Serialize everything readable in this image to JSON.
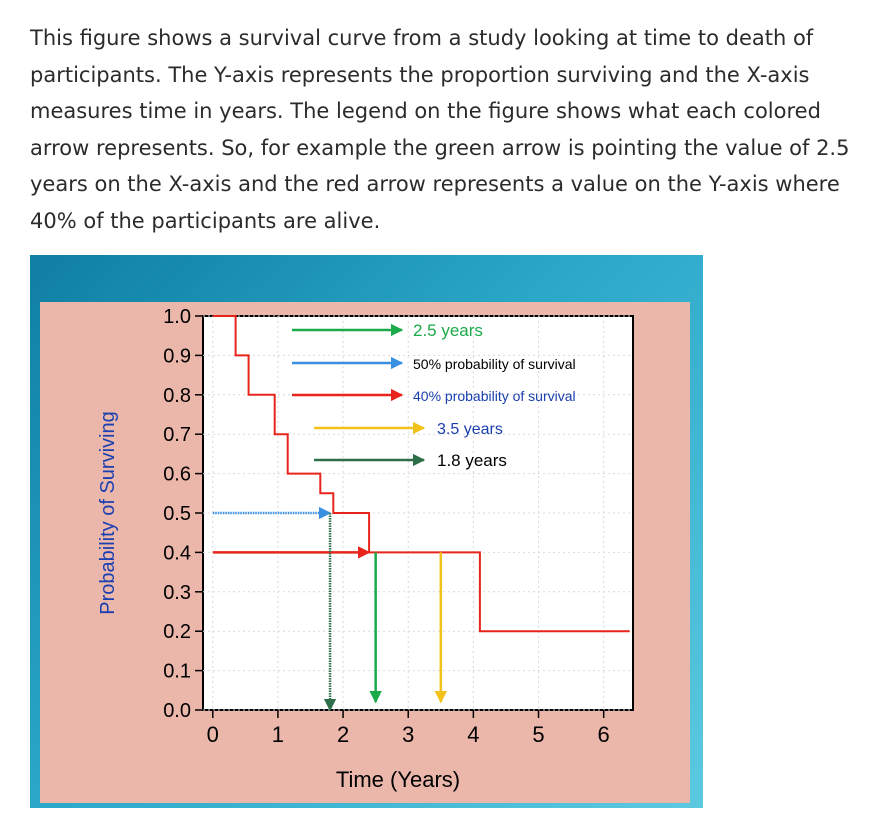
{
  "description": {
    "text": "This figure shows a survival curve from a study looking at time to death of participants.  The Y-axis represents the proportion surviving and the X-axis measures time in years.  The legend on the figure shows what each colored arrow represents.  So, for example the green arrow is pointing the value of 2.5 years on the X-axis and the red arrow represents a value on the Y-axis where 40% of the participants are alive."
  },
  "chart_data": {
    "type": "line",
    "step": true,
    "title": "",
    "xlabel": "Time (Years)",
    "ylabel": "Probability of Surviving",
    "xlim": [
      -0.15,
      6.45
    ],
    "ylim": [
      0,
      1.0
    ],
    "xticks": [
      0,
      1,
      2,
      3,
      4,
      5,
      6
    ],
    "yticks": [
      0.0,
      0.1,
      0.2,
      0.3,
      0.4,
      0.5,
      0.6,
      0.7,
      0.8,
      0.9,
      1.0
    ],
    "ytick_labels": [
      "0.0",
      "0.1",
      "0.2",
      "0.3",
      "0.4",
      "0.5",
      "0.6",
      "0.7",
      "0.8",
      "0.9",
      "1.0"
    ],
    "xtick_labels": [
      "0",
      "1",
      "2",
      "3",
      "4",
      "5",
      "6"
    ],
    "grid": true,
    "curve_color": "#e8241c",
    "series": [
      {
        "x": [
          0,
          0.35,
          0.35,
          0.55,
          0.55,
          0.95,
          0.95,
          1.15,
          1.15,
          1.65,
          1.65,
          1.85,
          1.85,
          2.4,
          2.4,
          4.1,
          4.1,
          6.4
        ],
        "y": [
          1.0,
          1.0,
          0.9,
          0.9,
          0.8,
          0.8,
          0.7,
          0.7,
          0.6,
          0.6,
          0.55,
          0.55,
          0.5,
          0.5,
          0.4,
          0.4,
          0.2,
          0.2
        ]
      }
    ],
    "legend": [
      {
        "label": "2.5 years",
        "color": "#1aaa4a",
        "label_color": "#1aaa4a",
        "style": "solid"
      },
      {
        "label": "50% probability of survival",
        "color": "#3a8fe0",
        "label_color": "#000000",
        "style": "solid"
      },
      {
        "label": "40% probability of survival",
        "color": "#e8241c",
        "label_color": "#1a3fb0",
        "style": "solid"
      },
      {
        "label": "3.5 years",
        "color": "#f3c21a",
        "label_color": "#1a3fb0",
        "style": "solid"
      },
      {
        "label": "1.8 years",
        "color": "#2e6e48",
        "label_color": "#000000",
        "style": "solid"
      }
    ],
    "arrows": [
      {
        "name": "blue-arrow",
        "color": "#3a8fe0",
        "from": [
          0,
          0.5
        ],
        "to": [
          1.8,
          0.5
        ],
        "dotted": true
      },
      {
        "name": "red-arrow",
        "color": "#e8241c",
        "from": [
          0,
          0.4
        ],
        "to": [
          2.4,
          0.4
        ],
        "dotted": false
      },
      {
        "name": "dark-green-arrow",
        "color": "#2e6e48",
        "from": [
          1.8,
          0.5
        ],
        "to": [
          1.8,
          0.0
        ],
        "dotted": true
      },
      {
        "name": "green-arrow",
        "color": "#1aaa4a",
        "from": [
          2.5,
          0.4
        ],
        "to": [
          2.5,
          0.02
        ],
        "dotted": false
      },
      {
        "name": "yellow-arrow",
        "color": "#f3c21a",
        "from": [
          3.5,
          0.4
        ],
        "to": [
          3.5,
          0.02
        ],
        "dotted": false
      }
    ]
  }
}
